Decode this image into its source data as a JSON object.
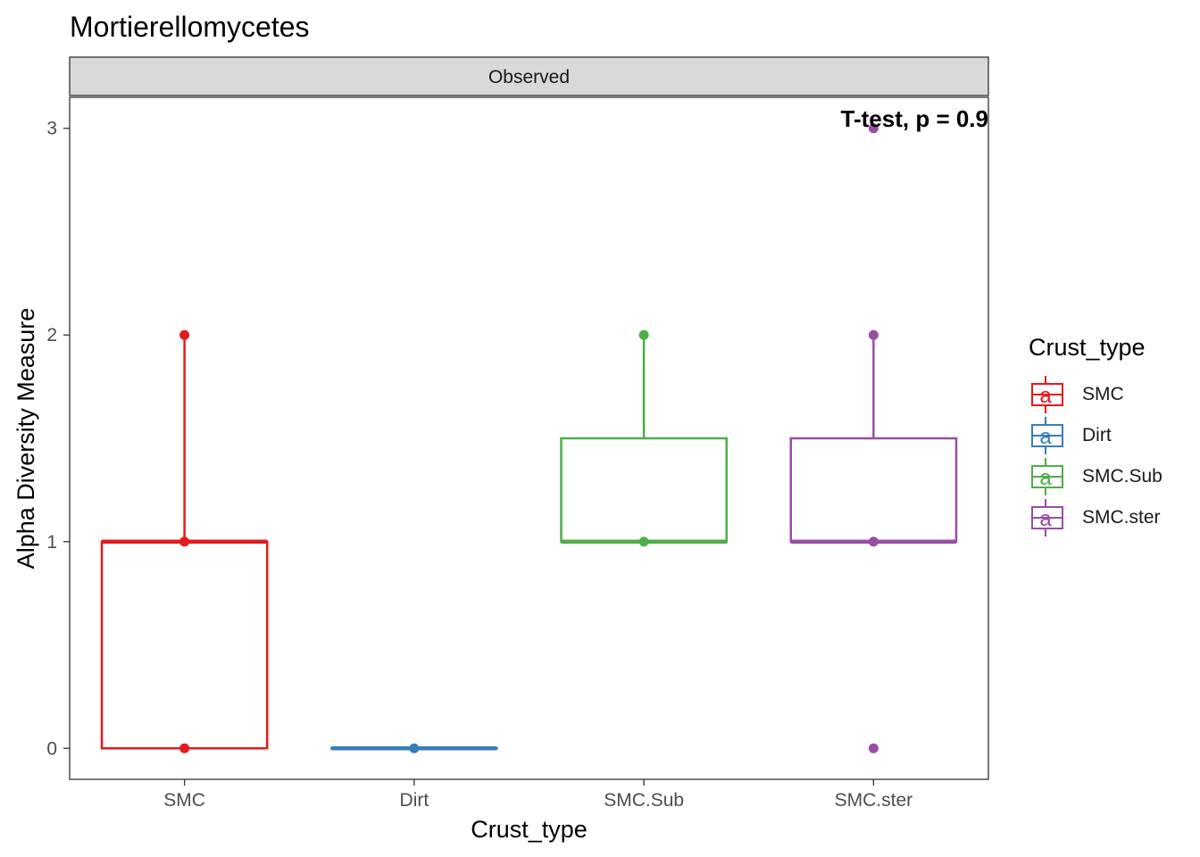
{
  "chart_data": {
    "type": "box",
    "title": "Mortierellomycetes",
    "facet_label": "Observed",
    "xlabel": "Crust_type",
    "ylabel": "Alpha Diversity Measure",
    "ylim": [
      -0.15,
      3.15
    ],
    "y_ticks": [
      0,
      1,
      2,
      3
    ],
    "grid": false,
    "categories": [
      "SMC",
      "Dirt",
      "SMC.Sub",
      "SMC.ster"
    ],
    "annotation": "T-test, p = 0.9",
    "legend": {
      "title": "Crust_type",
      "position": "right",
      "key_glyph": "a"
    },
    "boxes": [
      {
        "name": "SMC",
        "color": "#E41A1C",
        "min": 0,
        "q1": 0,
        "median": 1,
        "q3": 1,
        "max": 2,
        "points": [
          0,
          1,
          2
        ]
      },
      {
        "name": "Dirt",
        "color": "#377EB8",
        "min": 0,
        "q1": 0,
        "median": 0,
        "q3": 0,
        "max": 0,
        "points": [
          0
        ]
      },
      {
        "name": "SMC.Sub",
        "color": "#4DAF4A",
        "min": 1,
        "q1": 1,
        "median": 1,
        "q3": 1.5,
        "max": 2,
        "points": [
          1,
          2
        ]
      },
      {
        "name": "SMC.ster",
        "color": "#984EA3",
        "min": 1,
        "q1": 1,
        "median": 1,
        "q3": 1.5,
        "max": 2,
        "points": [
          0,
          1,
          2,
          3
        ]
      }
    ]
  }
}
